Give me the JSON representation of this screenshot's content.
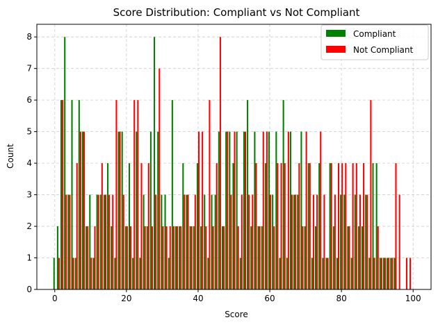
{
  "chart_data": {
    "type": "bar",
    "title": "Score Distribution: Compliant vs Not Compliant",
    "xlabel": "Score",
    "ylabel": "Count",
    "xlim": [
      -5,
      105
    ],
    "ylim": [
      0,
      8.4
    ],
    "xticks": [
      0,
      20,
      40,
      60,
      80,
      100
    ],
    "yticks": [
      0,
      1,
      2,
      3,
      4,
      5,
      6,
      7,
      8
    ],
    "grid": true,
    "legend_position": "top-right",
    "colors": {
      "Compliant": "#008000",
      "Not Compliant": "#ff0000"
    },
    "x": [
      0,
      1,
      2,
      3,
      4,
      5,
      6,
      7,
      8,
      9,
      10,
      11,
      12,
      13,
      14,
      15,
      16,
      17,
      18,
      19,
      20,
      21,
      22,
      23,
      24,
      25,
      26,
      27,
      28,
      29,
      30,
      31,
      32,
      33,
      34,
      35,
      36,
      37,
      38,
      39,
      40,
      41,
      42,
      43,
      44,
      45,
      46,
      47,
      48,
      49,
      50,
      51,
      52,
      53,
      54,
      55,
      56,
      57,
      58,
      59,
      60,
      61,
      62,
      63,
      64,
      65,
      66,
      67,
      68,
      69,
      70,
      71,
      72,
      73,
      74,
      75,
      76,
      77,
      78,
      79,
      80,
      81,
      82,
      83,
      84,
      85,
      86,
      87,
      88,
      89,
      90,
      91,
      92,
      93,
      94,
      95,
      96,
      97,
      98,
      99
    ],
    "series": [
      {
        "name": "Compliant",
        "values": [
          1,
          2,
          6,
          8,
          3,
          6,
          1,
          6,
          5,
          2,
          3,
          1,
          3,
          3,
          3,
          4,
          2,
          1,
          5,
          5,
          2,
          4,
          1,
          5,
          1,
          3,
          2,
          5,
          8,
          5,
          3,
          3,
          1,
          6,
          2,
          2,
          4,
          3,
          2,
          2,
          4,
          2,
          3,
          1,
          3,
          3,
          5,
          2,
          5,
          5,
          4,
          5,
          1,
          5,
          6,
          2,
          5,
          2,
          2,
          4,
          5,
          3,
          5,
          1,
          6,
          1,
          5,
          3,
          3,
          5,
          2,
          4,
          1,
          2,
          4,
          1,
          1,
          4,
          2,
          1,
          3,
          3,
          2,
          1,
          3,
          2,
          2,
          3,
          1,
          4,
          4,
          1,
          1,
          1,
          1,
          1,
          0,
          0,
          0,
          0
        ]
      },
      {
        "name": "Not Compliant",
        "values": [
          0,
          1,
          6,
          3,
          3,
          1,
          4,
          5,
          5,
          2,
          1,
          2,
          3,
          4,
          3,
          3,
          3,
          6,
          5,
          3,
          2,
          2,
          6,
          6,
          4,
          2,
          4,
          2,
          3,
          7,
          2,
          2,
          2,
          2,
          2,
          2,
          3,
          3,
          2,
          3,
          5,
          5,
          2,
          6,
          2,
          4,
          8,
          2,
          5,
          3,
          5,
          2,
          3,
          5,
          3,
          3,
          4,
          2,
          5,
          5,
          3,
          2,
          4,
          4,
          4,
          5,
          3,
          3,
          4,
          2,
          5,
          4,
          3,
          3,
          5,
          3,
          1,
          4,
          3,
          4,
          4,
          4,
          2,
          4,
          4,
          3,
          4,
          3,
          6,
          1,
          2,
          1,
          1,
          1,
          1,
          4,
          3,
          0,
          1,
          1
        ]
      }
    ]
  }
}
